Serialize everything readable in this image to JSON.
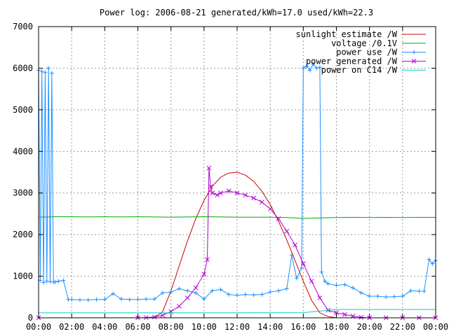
{
  "chart_data": {
    "type": "line",
    "title": "Power log: 2006-08-21 generated/kWh=17.0 used/kWh=22.3",
    "xlabel": "",
    "ylabel": "",
    "xlim": [
      0,
      24
    ],
    "ylim": [
      0,
      7000
    ],
    "x_ticks": [
      "00:00",
      "02:00",
      "04:00",
      "06:00",
      "08:00",
      "10:00",
      "12:00",
      "14:00",
      "16:00",
      "18:00",
      "20:00",
      "22:00",
      "00:00"
    ],
    "y_ticks": [
      "0",
      "1000",
      "2000",
      "3000",
      "4000",
      "5000",
      "6000",
      "7000"
    ],
    "grid": true,
    "legend_position": "top-right",
    "series": [
      {
        "name": "sunlight estimate /W",
        "color": "#cc0000",
        "style": "line",
        "x": [
          0,
          7.0,
          7.5,
          8.0,
          8.5,
          9.0,
          9.5,
          10.0,
          10.5,
          11.0,
          11.5,
          12.0,
          12.5,
          13.0,
          13.5,
          14.0,
          14.5,
          15.0,
          15.5,
          16.0,
          16.5,
          17.0,
          17.5,
          18.0,
          18.5,
          19.0,
          24
        ],
        "y": [
          0,
          0,
          150,
          650,
          1250,
          1850,
          2380,
          2820,
          3160,
          3380,
          3480,
          3500,
          3430,
          3280,
          3040,
          2720,
          2320,
          1870,
          1380,
          880,
          420,
          120,
          30,
          0,
          0,
          0,
          0
        ]
      },
      {
        "name": "voltage /0.1V",
        "color": "#00aa00",
        "style": "line",
        "x": [
          0,
          1,
          2,
          3,
          4,
          5,
          6,
          7,
          8,
          9,
          10,
          11,
          12,
          13,
          14,
          15,
          16,
          17,
          18,
          19,
          20,
          21,
          22,
          23,
          24
        ],
        "y": [
          2420,
          2430,
          2430,
          2425,
          2430,
          2425,
          2430,
          2425,
          2420,
          2425,
          2430,
          2425,
          2420,
          2420,
          2420,
          2410,
          2390,
          2400,
          2410,
          2415,
          2410,
          2415,
          2410,
          2415,
          2415
        ]
      },
      {
        "name": "power use /W",
        "color": "#1e90ff",
        "style": "linespoints",
        "marker": "plus",
        "x": [
          0.0,
          0.1,
          0.2,
          0.3,
          0.4,
          0.5,
          0.6,
          0.7,
          0.8,
          0.9,
          1.0,
          1.2,
          1.5,
          1.8,
          2.0,
          2.5,
          3.0,
          3.5,
          4.0,
          4.5,
          5.0,
          5.5,
          6.0,
          6.5,
          7.0,
          7.5,
          8.0,
          8.5,
          9.0,
          9.5,
          10.0,
          10.5,
          11.0,
          11.5,
          12.0,
          12.5,
          13.0,
          13.5,
          14.0,
          14.5,
          15.0,
          15.3,
          15.6,
          15.9,
          16.0,
          16.2,
          16.4,
          16.6,
          16.8,
          17.0,
          17.1,
          17.3,
          17.5,
          18.0,
          18.5,
          19.0,
          19.5,
          20.0,
          20.5,
          21.0,
          21.5,
          22.0,
          22.5,
          23.0,
          23.3,
          23.6,
          23.8,
          24.0
        ],
        "y": [
          5950,
          900,
          5920,
          850,
          5900,
          880,
          6000,
          870,
          5880,
          860,
          860,
          880,
          900,
          440,
          440,
          430,
          430,
          440,
          440,
          580,
          450,
          440,
          440,
          450,
          450,
          600,
          620,
          700,
          650,
          600,
          450,
          650,
          680,
          560,
          540,
          560,
          550,
          560,
          620,
          650,
          700,
          1500,
          950,
          1200,
          6000,
          6050,
          5950,
          6100,
          6000,
          6020,
          1100,
          880,
          820,
          780,
          800,
          720,
          600,
          520,
          520,
          500,
          510,
          520,
          650,
          640,
          640,
          1400,
          1300,
          1380
        ]
      },
      {
        "name": "power generated /W",
        "color": "#b000d0",
        "style": "linespoints",
        "marker": "cross",
        "x": [
          0,
          6.0,
          6.5,
          7.0,
          7.5,
          8.0,
          8.5,
          9.0,
          9.5,
          10.0,
          10.2,
          10.3,
          10.4,
          10.5,
          10.8,
          11.0,
          11.5,
          12.0,
          12.5,
          13.0,
          13.5,
          14.0,
          14.5,
          15.0,
          15.5,
          16.0,
          16.5,
          17.0,
          17.5,
          18.0,
          18.5,
          19.0,
          19.5,
          20.0,
          21.0,
          22.0,
          23.0,
          24.0
        ],
        "y": [
          0,
          0,
          5,
          20,
          60,
          150,
          280,
          480,
          720,
          1050,
          1400,
          3600,
          3150,
          3000,
          2950,
          3000,
          3050,
          3000,
          2950,
          2880,
          2780,
          2620,
          2380,
          2080,
          1750,
          1300,
          880,
          480,
          180,
          120,
          80,
          40,
          10,
          0,
          0,
          0,
          0,
          0
        ]
      },
      {
        "name": "power on C14 /W",
        "color": "#00cccc",
        "style": "line",
        "x": [
          0,
          4,
          8,
          12,
          16,
          18,
          20,
          24
        ],
        "y": [
          120,
          120,
          120,
          120,
          125,
          200,
          200,
          200
        ]
      }
    ]
  }
}
